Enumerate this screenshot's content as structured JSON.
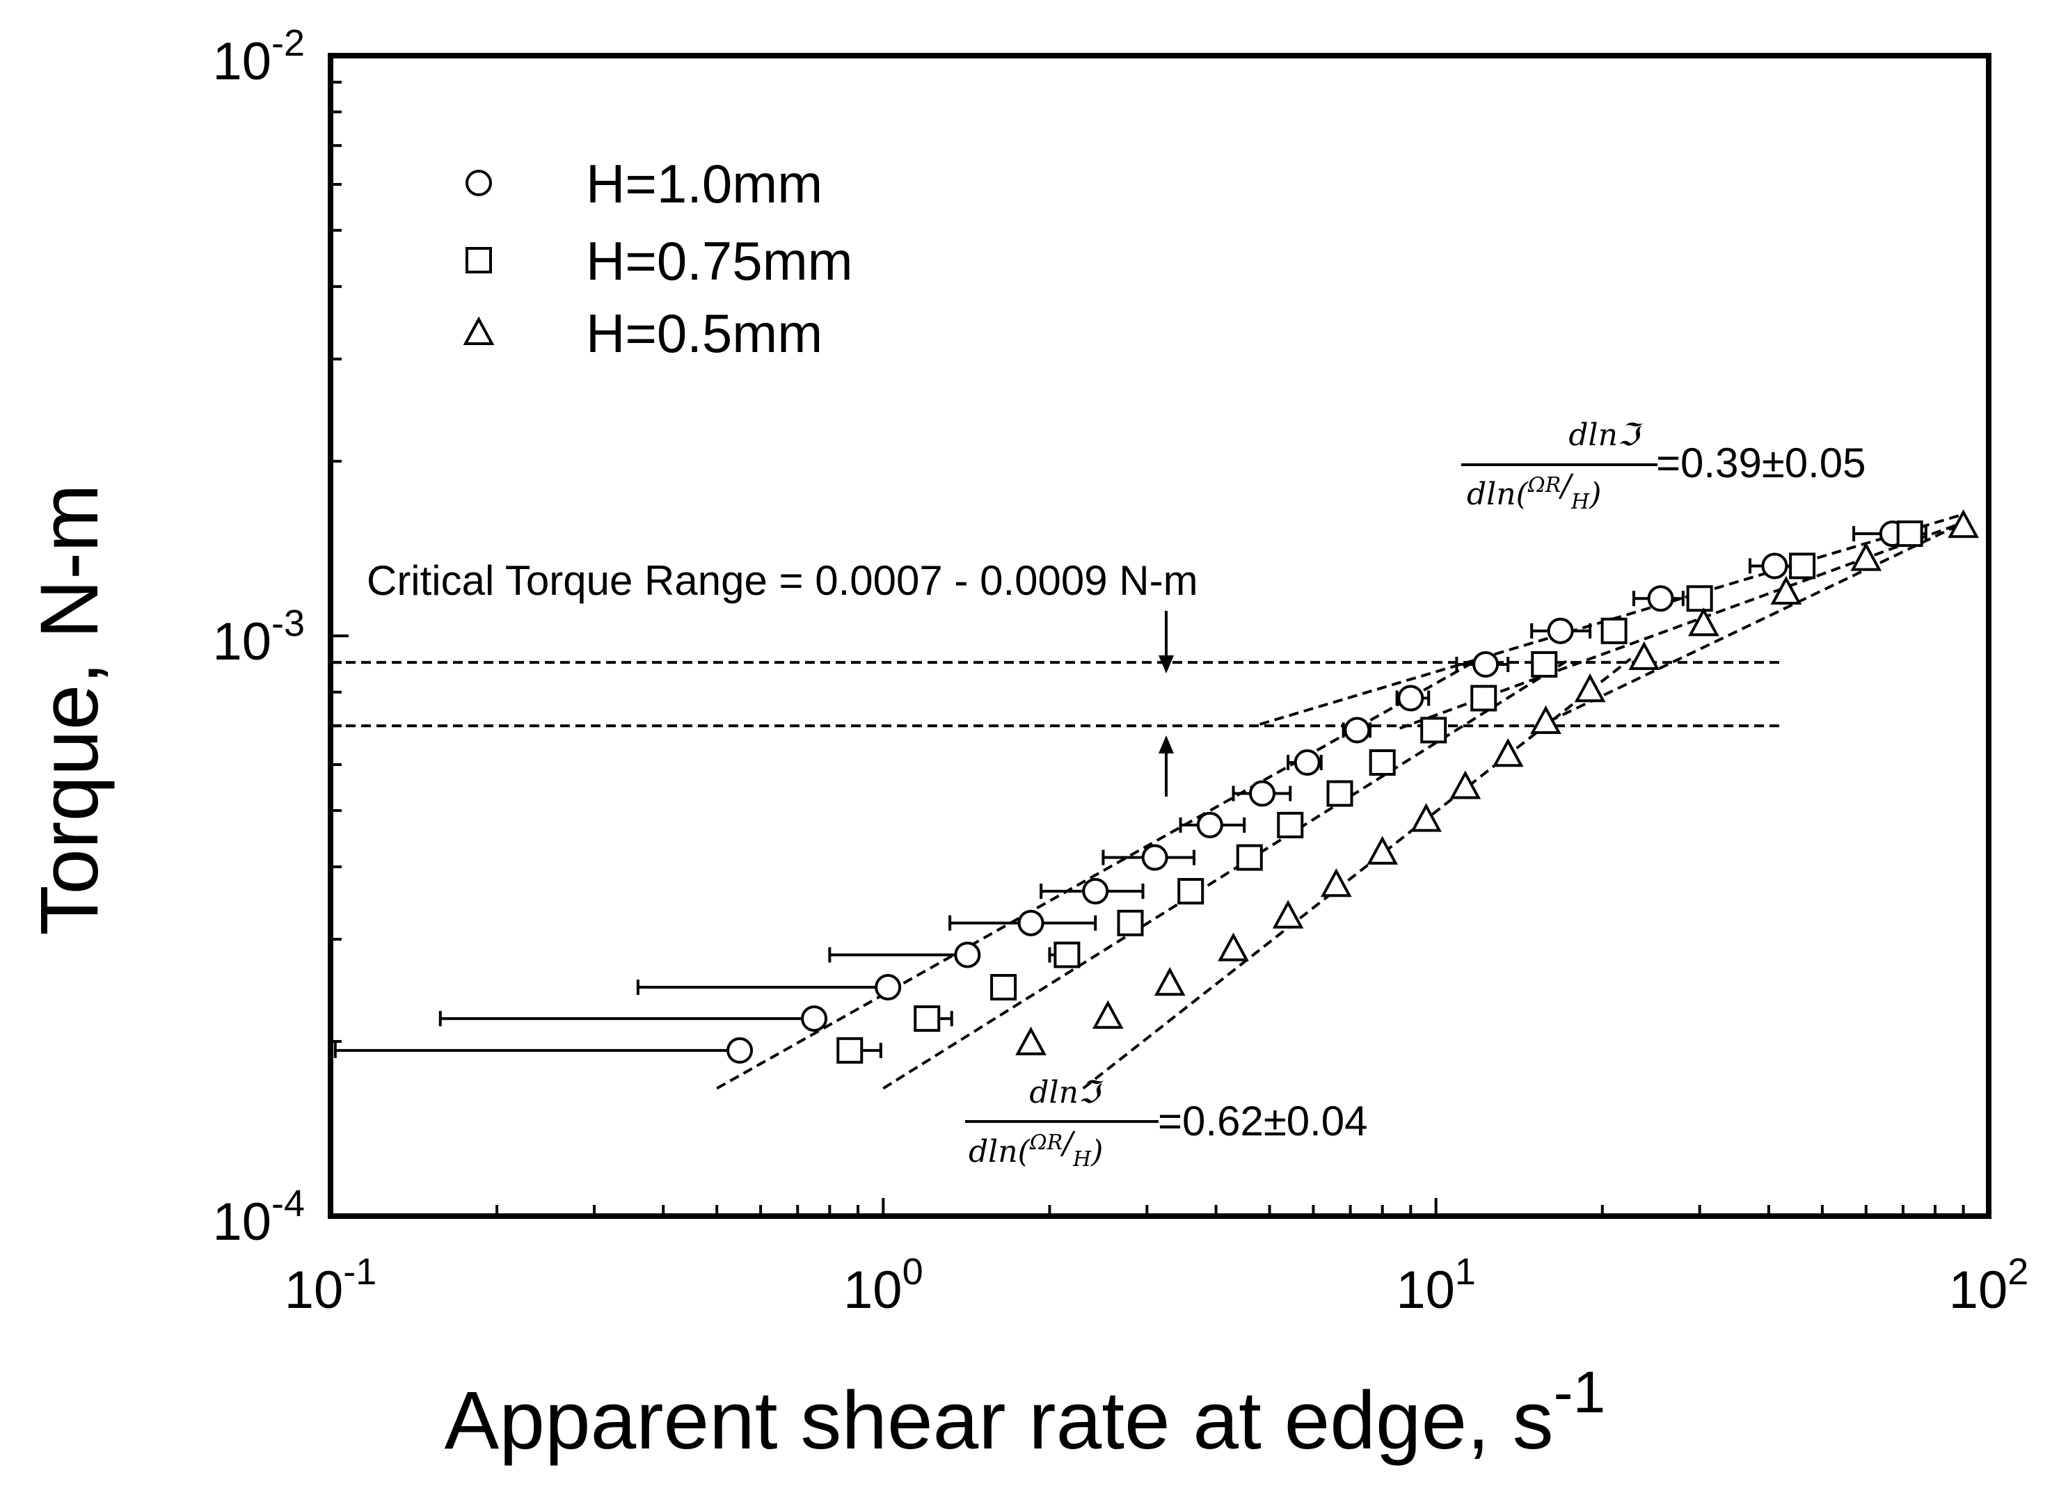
{
  "chart_data": {
    "type": "scatter",
    "xscale": "log",
    "yscale": "log",
    "xlim": [
      0.1,
      100
    ],
    "ylim": [
      0.0001,
      0.01
    ],
    "xlabel": {
      "main": "Apparent shear rate at edge, s",
      "sup": "-1"
    },
    "ylabel": "Torque, N-m",
    "x_ticks": [
      {
        "value": 0.1,
        "base": "10",
        "exp": "-1"
      },
      {
        "value": 1,
        "base": "10",
        "exp": "0"
      },
      {
        "value": 10,
        "base": "10",
        "exp": "1"
      },
      {
        "value": 100,
        "base": "10",
        "exp": "2"
      }
    ],
    "y_ticks": [
      {
        "value": 0.0001,
        "base": "10",
        "exp": "-4"
      },
      {
        "value": 0.001,
        "base": "10",
        "exp": "-3"
      },
      {
        "value": 0.01,
        "base": "10",
        "exp": "-2"
      }
    ],
    "grid": false,
    "legend_position": "top-left",
    "series": [
      {
        "name": "H=1.0mm",
        "marker": "circle",
        "points": [
          {
            "x": 0.55,
            "y": 0.000193,
            "xlo": 0.102,
            "xhi": 0.55
          },
          {
            "x": 0.75,
            "y": 0.000219,
            "xlo": 0.158,
            "xhi": 0.75
          },
          {
            "x": 1.02,
            "y": 0.000248,
            "xlo": 0.36,
            "xhi": 1.02
          },
          {
            "x": 1.42,
            "y": 0.000282,
            "xlo": 0.8,
            "xhi": 1.42
          },
          {
            "x": 1.85,
            "y": 0.00032,
            "xlo": 1.32,
            "xhi": 2.42
          },
          {
            "x": 2.42,
            "y": 0.000363,
            "xlo": 1.93,
            "xhi": 2.95
          },
          {
            "x": 3.1,
            "y": 0.000415,
            "xlo": 2.5,
            "xhi": 3.65
          },
          {
            "x": 3.9,
            "y": 0.000472,
            "xlo": 3.45,
            "xhi": 4.5
          },
          {
            "x": 4.85,
            "y": 0.000535,
            "xlo": 4.3,
            "xhi": 5.45
          },
          {
            "x": 5.85,
            "y": 0.000605,
            "xlo": 5.4,
            "xhi": 6.2
          },
          {
            "x": 7.2,
            "y": 0.000688,
            "xlo": 6.8,
            "xhi": 7.6
          },
          {
            "x": 9.0,
            "y": 0.000781,
            "xlo": 8.5,
            "xhi": 9.7
          },
          {
            "x": 12.3,
            "y": 0.000893,
            "xlo": 10.9,
            "xhi": 13.5
          },
          {
            "x": 16.8,
            "y": 0.00102,
            "xlo": 14.9,
            "xhi": 19.0
          },
          {
            "x": 25.5,
            "y": 0.00116,
            "xlo": 22.8,
            "xhi": 28.0
          },
          {
            "x": 41.0,
            "y": 0.00132,
            "xlo": 37.0,
            "xhi": 45.0
          },
          {
            "x": 67.0,
            "y": 0.0015,
            "xlo": 57.0,
            "xhi": 77.0
          }
        ]
      },
      {
        "name": "H=0.75mm",
        "marker": "square",
        "points": [
          {
            "x": 0.87,
            "y": 0.000193,
            "xlo": 0.87,
            "xhi": 0.99
          },
          {
            "x": 1.2,
            "y": 0.000219,
            "xlo": 1.2,
            "xhi": 1.33
          },
          {
            "x": 1.65,
            "y": 0.000248,
            "xlo": 1.6,
            "xhi": 1.68
          },
          {
            "x": 2.15,
            "y": 0.000282,
            "xlo": 2.0,
            "xhi": 2.15
          },
          {
            "x": 2.8,
            "y": 0.00032
          },
          {
            "x": 3.6,
            "y": 0.000363
          },
          {
            "x": 4.6,
            "y": 0.000415
          },
          {
            "x": 5.45,
            "y": 0.000472
          },
          {
            "x": 6.7,
            "y": 0.000535
          },
          {
            "x": 8.0,
            "y": 0.000605
          },
          {
            "x": 9.9,
            "y": 0.000688
          },
          {
            "x": 12.2,
            "y": 0.000781
          },
          {
            "x": 15.7,
            "y": 0.000893
          },
          {
            "x": 21.0,
            "y": 0.00102
          },
          {
            "x": 30.0,
            "y": 0.00116
          },
          {
            "x": 46.0,
            "y": 0.00132
          },
          {
            "x": 72.0,
            "y": 0.0015
          }
        ]
      },
      {
        "name": "H=0.5mm",
        "marker": "triangle",
        "points": [
          {
            "x": 1.85,
            "y": 0.000199
          },
          {
            "x": 2.55,
            "y": 0.000221
          },
          {
            "x": 3.3,
            "y": 0.000252
          },
          {
            "x": 4.3,
            "y": 0.000289
          },
          {
            "x": 5.4,
            "y": 0.000329
          },
          {
            "x": 6.6,
            "y": 0.000373
          },
          {
            "x": 8.0,
            "y": 0.000424
          },
          {
            "x": 9.6,
            "y": 0.000483
          },
          {
            "x": 11.3,
            "y": 0.00055
          },
          {
            "x": 13.5,
            "y": 0.000625
          },
          {
            "x": 15.8,
            "y": 0.000712
          },
          {
            "x": 19.0,
            "y": 0.000808
          },
          {
            "x": 23.8,
            "y": 0.000918
          },
          {
            "x": 30.5,
            "y": 0.00105
          },
          {
            "x": 43.0,
            "y": 0.00119
          },
          {
            "x": 60.0,
            "y": 0.00136
          },
          {
            "x": 90.0,
            "y": 0.00155
          }
        ]
      }
    ],
    "fit_lines": [
      {
        "name": "fit-h10-low",
        "x": [
          0.5,
          11.5
        ],
        "y": [
          0.000166,
          0.000893
        ]
      },
      {
        "name": "fit-h075-low",
        "x": [
          1.0,
          17.5
        ],
        "y": [
          0.000166,
          0.000913
        ]
      },
      {
        "name": "fit-h05-low",
        "x": [
          2.3,
          22.5
        ],
        "y": [
          0.000166,
          0.000913
        ]
      },
      {
        "name": "fit-h10-high",
        "x": [
          4.8,
          90.0
        ],
        "y": [
          0.000704,
          0.00162
        ]
      },
      {
        "name": "fit-h075-high",
        "x": [
          8.6,
          92.0
        ],
        "y": [
          0.000693,
          0.00158
        ]
      },
      {
        "name": "fit-h05-high",
        "x": [
          16.0,
          88.0
        ],
        "y": [
          0.000712,
          0.00155
        ]
      }
    ],
    "reference_lines": [
      {
        "name": "critical-upper-line",
        "y": 0.0009,
        "x": [
          0.1,
          42.0
        ]
      },
      {
        "name": "critical-lower-line",
        "y": 0.0007,
        "x": [
          0.1,
          42.0
        ]
      }
    ],
    "annotations": {
      "critical_range": "Critical Torque Range = 0.0007 - 0.0009 N-m",
      "slope_high": {
        "numerator": "dlnℑ",
        "den_prefix": "dln(",
        "den_omega_r": "ΩR",
        "den_slash": "/",
        "den_h": "H",
        "den_close": ")",
        "value": "=0.39±0.05"
      },
      "slope_low": {
        "numerator": "dlnℑ",
        "den_prefix": "dln(",
        "den_omega_r": "ΩR",
        "den_slash": "/",
        "den_h": "H",
        "den_close": ")",
        "value": "=0.62±0.04"
      }
    }
  }
}
